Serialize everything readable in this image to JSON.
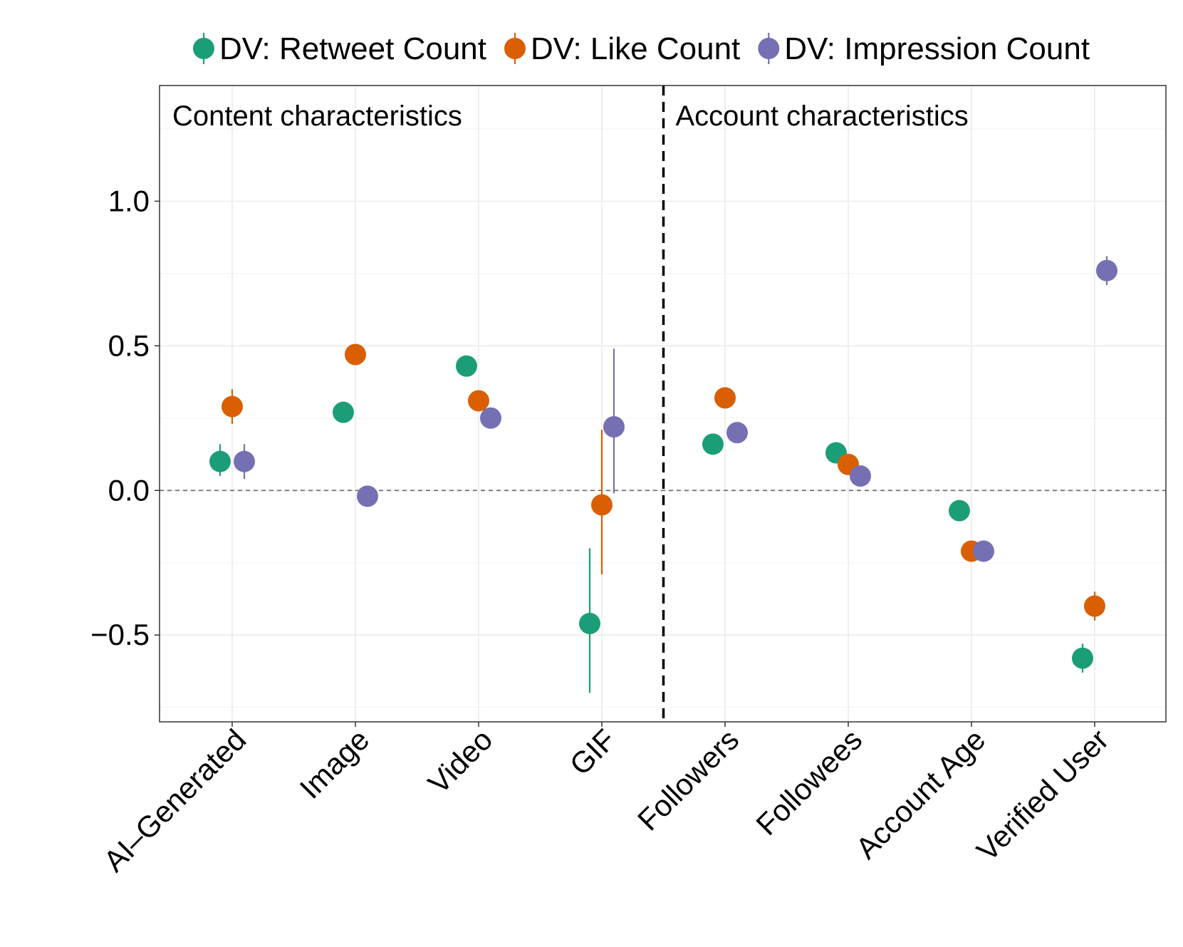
{
  "chart_data": {
    "type": "scatter",
    "title": "",
    "xlabel": "",
    "ylabel": "",
    "categories": [
      "AI–Generated",
      "Image",
      "Video",
      "GIF",
      "Followers",
      "Followees",
      "Account Age",
      "Verified User"
    ],
    "ylim": [
      -0.8,
      1.4
    ],
    "yticks": [
      -0.5,
      0.0,
      0.5,
      1.0
    ],
    "ytick_labels": [
      "−0.5",
      "0.0",
      "0.5",
      "1.0"
    ],
    "panel_labels": {
      "left": "Content characteristics",
      "right": "Account characteristics"
    },
    "divider_after_category": "GIF",
    "reference_line": 0.0,
    "legend_position": "top",
    "series": [
      {
        "name": "DV: Retweet Count",
        "color": "#1b9e77",
        "values": [
          0.1,
          0.27,
          0.43,
          -0.46,
          0.16,
          0.13,
          -0.07,
          -0.58
        ],
        "lower": [
          0.05,
          0.24,
          0.4,
          -0.7,
          0.14,
          0.11,
          -0.09,
          -0.63
        ],
        "upper": [
          0.16,
          0.3,
          0.46,
          -0.2,
          0.18,
          0.15,
          -0.05,
          -0.53
        ]
      },
      {
        "name": "DV: Like Count",
        "color": "#d95f02",
        "values": [
          0.29,
          0.47,
          0.31,
          -0.05,
          0.32,
          0.09,
          -0.21,
          -0.4
        ],
        "lower": [
          0.23,
          0.44,
          0.28,
          -0.29,
          0.3,
          0.07,
          -0.23,
          -0.45
        ],
        "upper": [
          0.35,
          0.5,
          0.34,
          0.21,
          0.34,
          0.11,
          -0.19,
          -0.35
        ]
      },
      {
        "name": "DV: Impression Count",
        "color": "#7570b3",
        "values": [
          0.1,
          -0.02,
          0.25,
          0.22,
          0.2,
          0.05,
          -0.21,
          0.76
        ],
        "lower": [
          0.04,
          -0.05,
          0.22,
          -0.01,
          0.18,
          0.03,
          -0.23,
          0.71
        ],
        "upper": [
          0.16,
          0.01,
          0.28,
          0.49,
          0.22,
          0.07,
          -0.19,
          0.81
        ]
      }
    ]
  }
}
